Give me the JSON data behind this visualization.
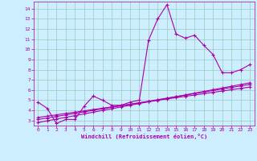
{
  "xlabel": "Windchill (Refroidissement éolien,°C)",
  "bg_color": "#cceeff",
  "line_color": "#aa00aa",
  "xlim": [
    -0.5,
    23.5
  ],
  "ylim": [
    2.5,
    14.7
  ],
  "xticks": [
    0,
    1,
    2,
    3,
    4,
    5,
    6,
    7,
    8,
    9,
    10,
    11,
    12,
    13,
    14,
    15,
    16,
    17,
    18,
    19,
    20,
    21,
    22,
    23
  ],
  "yticks": [
    3,
    4,
    5,
    6,
    7,
    8,
    9,
    10,
    11,
    12,
    13,
    14
  ],
  "grid_color": "#99ccbb",
  "s1_x": [
    0,
    1,
    2,
    3,
    4,
    5,
    6,
    7,
    8,
    9,
    10,
    11,
    12,
    13,
    14,
    15,
    16,
    17,
    18,
    19,
    20,
    21,
    22,
    23
  ],
  "s1_y": [
    4.8,
    4.2,
    2.7,
    3.1,
    3.1,
    4.4,
    5.4,
    5.0,
    4.5,
    4.5,
    4.8,
    5.0,
    10.9,
    13.0,
    14.4,
    11.5,
    11.1,
    11.4,
    10.4,
    9.5,
    7.7,
    7.7,
    8.0,
    8.5
  ],
  "s2_x": [
    0,
    1,
    2,
    3,
    4,
    5,
    6,
    7,
    8,
    9,
    10,
    11,
    12,
    13,
    14,
    15,
    16,
    17,
    18,
    19,
    20,
    21,
    22,
    23
  ],
  "s2_y": [
    2.8,
    2.97,
    3.14,
    3.31,
    3.48,
    3.65,
    3.82,
    3.99,
    4.16,
    4.33,
    4.5,
    4.67,
    4.84,
    5.01,
    5.18,
    5.35,
    5.52,
    5.69,
    5.86,
    6.03,
    6.2,
    6.37,
    6.54,
    6.71
  ],
  "s3_x": [
    0,
    1,
    2,
    3,
    4,
    5,
    6,
    7,
    8,
    9,
    10,
    11,
    12,
    13,
    14,
    15,
    16,
    17,
    18,
    19,
    20,
    21,
    22,
    23
  ],
  "s3_y": [
    3.1,
    3.25,
    3.4,
    3.55,
    3.7,
    3.85,
    4.0,
    4.15,
    4.3,
    4.45,
    4.6,
    4.75,
    4.9,
    5.05,
    5.2,
    5.35,
    5.5,
    5.65,
    5.8,
    5.95,
    6.1,
    6.25,
    6.4,
    6.55
  ],
  "s4_x": [
    0,
    1,
    2,
    3,
    4,
    5,
    6,
    7,
    8,
    9,
    10,
    11,
    12,
    13,
    14,
    15,
    16,
    17,
    18,
    19,
    20,
    21,
    22,
    23
  ],
  "s4_y": [
    3.3,
    3.43,
    3.56,
    3.69,
    3.82,
    3.95,
    4.08,
    4.21,
    4.34,
    4.47,
    4.6,
    4.73,
    4.86,
    4.99,
    5.12,
    5.25,
    5.38,
    5.51,
    5.64,
    5.77,
    5.9,
    6.03,
    6.16,
    6.29
  ]
}
